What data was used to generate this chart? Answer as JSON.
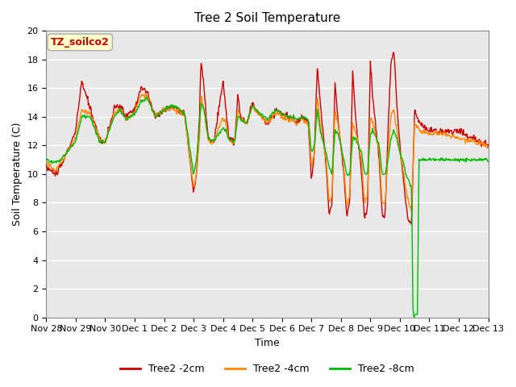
{
  "title": "Tree 2 Soil Temperature",
  "ylabel": "Soil Temperature (C)",
  "xlabel": "Time",
  "annotation": "TZ_soilco2",
  "ylim": [
    0,
    20
  ],
  "x_tick_labels": [
    "Nov 28",
    "Nov 29",
    "Nov 30",
    "Dec 1",
    "Dec 2",
    "Dec 3",
    "Dec 4",
    "Dec 5",
    "Dec 6",
    "Dec 7",
    "Dec 8",
    "Dec 9",
    "Dec 10",
    "Dec 11",
    "Dec 12",
    "Dec 13"
  ],
  "color_2cm": "#CC0000",
  "color_4cm": "#FF8800",
  "color_8cm": "#00BB00",
  "legend_labels": [
    "Tree2 -2cm",
    "Tree2 -4cm",
    "Tree2 -8cm"
  ],
  "bg_color": "#E8E8E8",
  "annotation_bg": "#FFFFCC",
  "annotation_text_color": "#CC0000",
  "grid_color": "#FFFFFF",
  "linewidth": 1.0
}
